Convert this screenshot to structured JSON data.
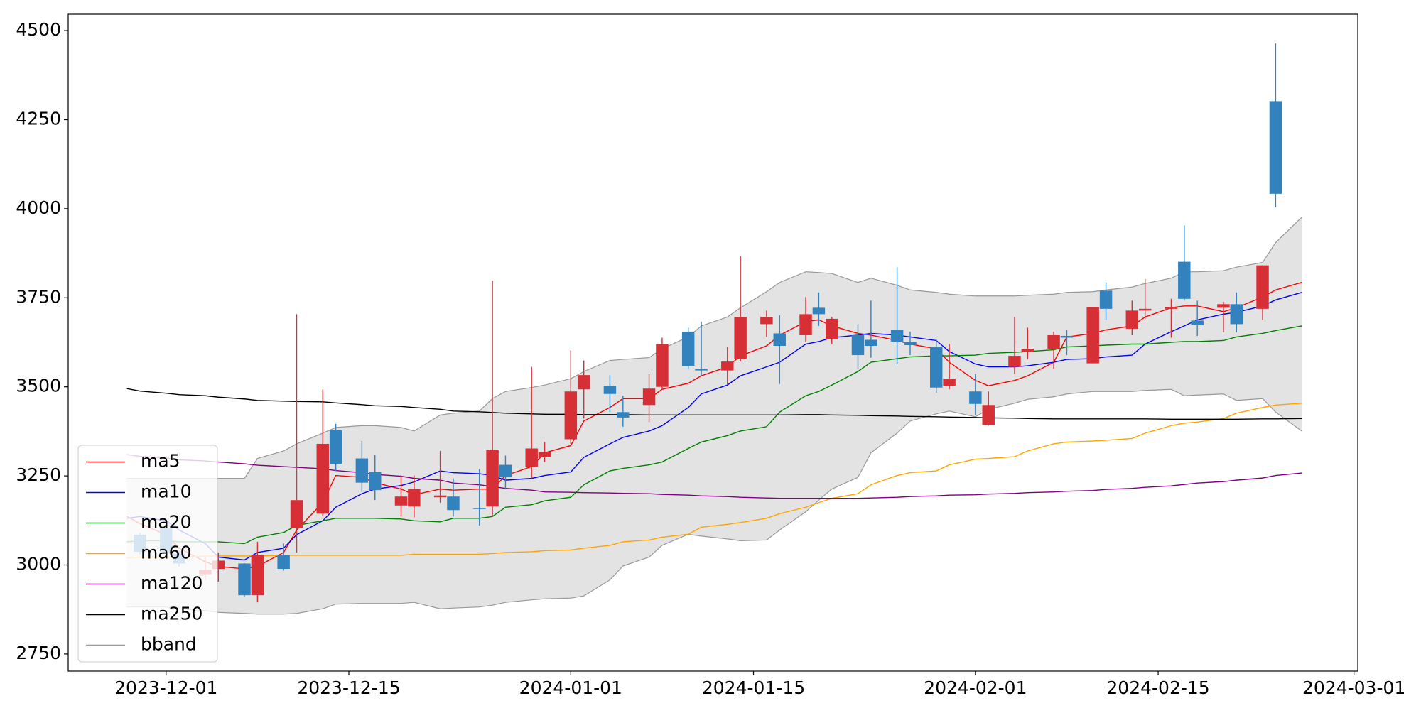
{
  "chart_data": {
    "type": "candlestick",
    "x": [
      "2023-11-28",
      "2023-11-29",
      "2023-12-01",
      "2023-12-02",
      "2023-12-04",
      "2023-12-05",
      "2023-12-07",
      "2023-12-08",
      "2023-12-10",
      "2023-12-11",
      "2023-12-13",
      "2023-12-14",
      "2023-12-16",
      "2023-12-17",
      "2023-12-19",
      "2023-12-20",
      "2023-12-22",
      "2023-12-23",
      "2023-12-25",
      "2023-12-26",
      "2023-12-27",
      "2023-12-29",
      "2023-12-30",
      "2024-01-01",
      "2024-01-02",
      "2024-01-04",
      "2024-01-05",
      "2024-01-07",
      "2024-01-08",
      "2024-01-10",
      "2024-01-11",
      "2024-01-13",
      "2024-01-14",
      "2024-01-16",
      "2024-01-17",
      "2024-01-19",
      "2024-01-20",
      "2024-01-21",
      "2024-01-23",
      "2024-01-24",
      "2024-01-26",
      "2024-01-27",
      "2024-01-29",
      "2024-01-30",
      "2024-02-01",
      "2024-02-02",
      "2024-02-04",
      "2024-02-05",
      "2024-02-07",
      "2024-02-08",
      "2024-02-10",
      "2024-02-11",
      "2024-02-13",
      "2024-02-14",
      "2024-02-16",
      "2024-02-17",
      "2024-02-18",
      "2024-02-20",
      "2024-02-21",
      "2024-02-23",
      "2024-02-24",
      "2024-02-26"
    ],
    "open": [
      null,
      3037,
      3035,
      3004,
      2986,
      3012,
      2915,
      3027,
      2989,
      3182,
      3340,
      3284,
      3231,
      3210,
      3192,
      3213,
      3195,
      3154,
      3157,
      3322,
      3246,
      3327,
      3317,
      3487,
      3533,
      3480,
      3414,
      3495,
      3620,
      3559,
      3546,
      3571,
      3696,
      3696,
      3615,
      3704,
      3704,
      3691,
      3589,
      3615,
      3627,
      3617,
      3498,
      3523,
      3452,
      3449,
      3587,
      3607,
      3645,
      3638,
      3724,
      3719,
      3714,
      3719,
      3724,
      3747,
      3673,
      3732,
      3676,
      3841,
      4042,
      null
    ],
    "high": [
      null,
      3090,
      3110,
      3040,
      3022,
      3035,
      3005,
      3065,
      3060,
      3704,
      3493,
      3396,
      3348,
      3309,
      3251,
      3251,
      3320,
      3243,
      3269,
      3798,
      3307,
      3556,
      3345,
      3602,
      3574,
      3533,
      3475,
      3536,
      3638,
      3666,
      3683,
      3612,
      3867,
      3714,
      3701,
      3752,
      3765,
      3696,
      3676,
      3742,
      3836,
      3655,
      3633,
      3620,
      3536,
      3487,
      3696,
      3666,
      3655,
      3660,
      3724,
      3793,
      3742,
      3803,
      3747,
      3953,
      3742,
      3739,
      3765,
      3841,
      4464,
      null
    ],
    "low": [
      null,
      3030,
      3030,
      2995,
      2958,
      2953,
      2912,
      2895,
      2984,
      3035,
      3136,
      3264,
      3205,
      3182,
      3136,
      3134,
      3175,
      3136,
      3111,
      3136,
      3213,
      3243,
      3289,
      3340,
      3411,
      3429,
      3388,
      3401,
      3493,
      3549,
      3531,
      3505,
      3571,
      3640,
      3508,
      3625,
      3671,
      3620,
      3549,
      3582,
      3564,
      3589,
      3482,
      3493,
      3421,
      3391,
      3536,
      3577,
      3551,
      3589,
      3566,
      3688,
      3645,
      3691,
      3638,
      3742,
      3643,
      3653,
      3653,
      3688,
      4004,
      null
    ],
    "close": [
      null,
      3085,
      3103,
      3032,
      2974,
      2989,
      3004,
      2915,
      3027,
      3103,
      3144,
      3378,
      3299,
      3261,
      3167,
      3164,
      3190,
      3192,
      3159,
      3164,
      3281,
      3276,
      3304,
      3353,
      3493,
      3503,
      3429,
      3449,
      3500,
      3655,
      3551,
      3546,
      3579,
      3676,
      3650,
      3645,
      3722,
      3635,
      3645,
      3632,
      3660,
      3625,
      3612,
      3503,
      3487,
      3393,
      3556,
      3597,
      3607,
      3643,
      3566,
      3770,
      3663,
      3714,
      3719,
      3851,
      3686,
      3722,
      3732,
      3719,
      4302,
      null
    ],
    "up_color": "#3182bd",
    "down_color": "#d62f35",
    "series": [
      {
        "name": "ma5",
        "color": "#ff0000",
        "values": [
          3136,
          3116,
          3085,
          3047,
          3009,
          2996,
          2989,
          2996,
          3035,
          3098,
          3175,
          3251,
          3246,
          3231,
          3213,
          3197,
          3213,
          3210,
          3213,
          3213,
          3251,
          3276,
          3315,
          3335,
          3404,
          3442,
          3467,
          3467,
          3493,
          3510,
          3531,
          3556,
          3587,
          3615,
          3645,
          3683,
          3688,
          3671,
          3650,
          3645,
          3630,
          3620,
          3607,
          3569,
          3518,
          3503,
          3518,
          3531,
          3569,
          3640,
          3650,
          3660,
          3671,
          3696,
          3722,
          3727,
          3727,
          3711,
          3722,
          3752,
          3772,
          3793
        ]
      },
      {
        "name": "ma10",
        "color": "#0000ff",
        "values": [
          3131,
          3136,
          3124,
          3098,
          3060,
          3022,
          3014,
          3035,
          3047,
          3085,
          3124,
          3162,
          3200,
          3213,
          3223,
          3233,
          3264,
          3259,
          3256,
          3251,
          3238,
          3243,
          3251,
          3261,
          3302,
          3340,
          3358,
          3376,
          3391,
          3442,
          3480,
          3505,
          3531,
          3556,
          3569,
          3620,
          3627,
          3638,
          3645,
          3650,
          3645,
          3640,
          3630,
          3599,
          3564,
          3556,
          3556,
          3559,
          3569,
          3577,
          3579,
          3584,
          3589,
          3620,
          3655,
          3671,
          3688,
          3704,
          3709,
          3727,
          3744,
          3765
        ]
      },
      {
        "name": "ma20",
        "color": "#008000",
        "values": [
          3065,
          3068,
          3068,
          3065,
          3065,
          3065,
          3060,
          3078,
          3091,
          3111,
          3124,
          3131,
          3131,
          3131,
          3129,
          3124,
          3121,
          3131,
          3131,
          3136,
          3162,
          3169,
          3180,
          3190,
          3225,
          3264,
          3271,
          3281,
          3289,
          3327,
          3345,
          3363,
          3376,
          3388,
          3429,
          3475,
          3487,
          3505,
          3543,
          3569,
          3579,
          3584,
          3587,
          3587,
          3589,
          3594,
          3597,
          3599,
          3604,
          3612,
          3615,
          3617,
          3620,
          3620,
          3625,
          3627,
          3627,
          3630,
          3640,
          3650,
          3658,
          3671
        ]
      },
      {
        "name": "ma60",
        "color": "#ffa500",
        "values": [
          3020,
          3022,
          3022,
          3022,
          3025,
          3025,
          3025,
          3025,
          3027,
          3027,
          3027,
          3027,
          3027,
          3027,
          3027,
          3030,
          3030,
          3030,
          3030,
          3032,
          3035,
          3037,
          3040,
          3042,
          3047,
          3055,
          3065,
          3070,
          3078,
          3086,
          3106,
          3114,
          3119,
          3131,
          3144,
          3162,
          3175,
          3187,
          3200,
          3225,
          3251,
          3259,
          3264,
          3281,
          3297,
          3299,
          3304,
          3320,
          3340,
          3345,
          3348,
          3350,
          3355,
          3370,
          3391,
          3398,
          3401,
          3411,
          3426,
          3442,
          3449,
          3454
        ]
      },
      {
        "name": "ma120",
        "color": "#800080",
        "values": [
          3310,
          3305,
          3300,
          3295,
          3292,
          3289,
          3284,
          3280,
          3276,
          3274,
          3270,
          3265,
          3259,
          3254,
          3249,
          3243,
          3238,
          3230,
          3225,
          3220,
          3215,
          3210,
          3205,
          3204,
          3203,
          3202,
          3201,
          3200,
          3198,
          3196,
          3194,
          3192,
          3190,
          3188,
          3187,
          3187,
          3187,
          3187,
          3187,
          3188,
          3190,
          3192,
          3194,
          3196,
          3197,
          3199,
          3201,
          3203,
          3205,
          3207,
          3209,
          3212,
          3215,
          3218,
          3222,
          3226,
          3230,
          3234,
          3238,
          3244,
          3251,
          3258
        ]
      },
      {
        "name": "ma250",
        "color": "#000000",
        "values": [
          3495,
          3488,
          3482,
          3478,
          3475,
          3471,
          3466,
          3462,
          3460,
          3459,
          3458,
          3455,
          3450,
          3447,
          3445,
          3442,
          3437,
          3432,
          3430,
          3428,
          3426,
          3424,
          3423,
          3423,
          3422,
          3422,
          3422,
          3421,
          3421,
          3421,
          3421,
          3421,
          3421,
          3421,
          3421,
          3422,
          3422,
          3421,
          3420,
          3419,
          3418,
          3417,
          3416,
          3415,
          3414,
          3413,
          3412,
          3411,
          3410,
          3410,
          3410,
          3410,
          3410,
          3410,
          3409,
          3409,
          3409,
          3409,
          3409,
          3410,
          3410,
          3411
        ]
      }
    ],
    "band": {
      "name": "bband",
      "color": "#999999",
      "fill": "#e3e3e3",
      "upper": [
        3243,
        3243,
        3243,
        3243,
        3243,
        3243,
        3243,
        3299,
        3320,
        3340,
        3370,
        3386,
        3391,
        3391,
        3386,
        3376,
        3421,
        3426,
        3432,
        3467,
        3487,
        3498,
        3505,
        3523,
        3543,
        3574,
        3577,
        3582,
        3607,
        3640,
        3671,
        3696,
        3722,
        3767,
        3793,
        3823,
        3821,
        3818,
        3793,
        3805,
        3785,
        3772,
        3765,
        3760,
        3755,
        3755,
        3755,
        3757,
        3760,
        3765,
        3767,
        3772,
        3780,
        3790,
        3805,
        3823,
        3823,
        3826,
        3836,
        3849,
        3905,
        3976
      ],
      "lower": [
        2882,
        2882,
        2882,
        2877,
        2872,
        2867,
        2864,
        2862,
        2862,
        2864,
        2877,
        2890,
        2892,
        2892,
        2892,
        2895,
        2877,
        2879,
        2882,
        2887,
        2895,
        2902,
        2905,
        2907,
        2913,
        2958,
        2997,
        3022,
        3055,
        3086,
        3081,
        3073,
        3068,
        3070,
        3098,
        3149,
        3182,
        3213,
        3246,
        3315,
        3370,
        3404,
        3424,
        3432,
        3416,
        3437,
        3454,
        3465,
        3472,
        3480,
        3487,
        3487,
        3487,
        3490,
        3493,
        3475,
        3477,
        3480,
        3462,
        3467,
        3429,
        3376
      ]
    },
    "xlim": [
      "2023-11-23T12:00",
      "2024-03-01T07:00"
    ],
    "xticks": [
      "2023-12-01",
      "2023-12-15",
      "2024-01-01",
      "2024-01-15",
      "2024-02-01",
      "2024-02-15",
      "2024-03-01"
    ],
    "ylim": [
      2702,
      4546
    ],
    "yticks": [
      2750,
      3000,
      3250,
      3500,
      3750,
      4000,
      4250,
      4500
    ],
    "legend": "lower left"
  }
}
